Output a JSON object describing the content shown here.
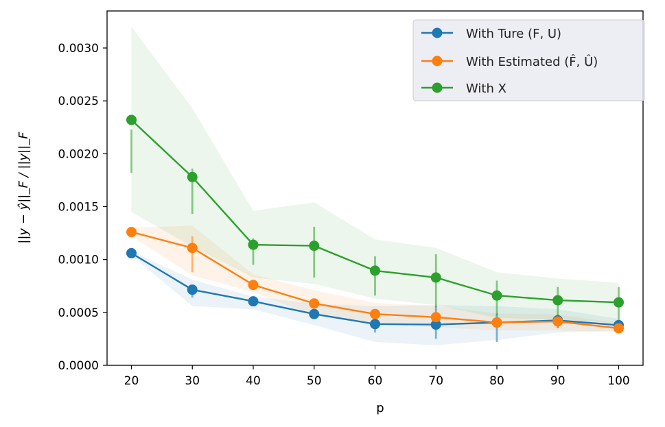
{
  "chart_data": {
    "type": "line",
    "title": "",
    "xlabel": "p",
    "ylabel": "||y − ŷ||_F / ||y||_F",
    "x": [
      20,
      30,
      40,
      50,
      60,
      70,
      80,
      90,
      100
    ],
    "xticks": [
      "20",
      "30",
      "40",
      "50",
      "60",
      "70",
      "80",
      "90",
      "100"
    ],
    "xlim": [
      16,
      104
    ],
    "ylim": [
      0,
      0.00335
    ],
    "yticks": [
      "0.0000",
      "0.0005",
      "0.0010",
      "0.0015",
      "0.0020",
      "0.0025",
      "0.0030"
    ],
    "ytick_values": [
      0,
      0.0005,
      0.001,
      0.0015,
      0.002,
      0.0025,
      0.003
    ],
    "grid": false,
    "legend_position": "top-right",
    "series": [
      {
        "name": "With Ture (F, U)",
        "color": "#1f77b4",
        "values": [
          0.00106,
          0.000715,
          0.000605,
          0.000485,
          0.00039,
          0.000385,
          0.000405,
          0.000425,
          0.00038
        ],
        "err_low": [
          0.00102,
          0.00064,
          0.00058,
          0.00045,
          0.00031,
          0.00025,
          0.00022,
          0.00035,
          0.00034
        ],
        "err_high": [
          0.0011,
          0.00075,
          0.00063,
          0.00052,
          0.00043,
          0.00056,
          0.00049,
          0.00048,
          0.00042
        ],
        "band_low": [
          0.00104,
          0.00056,
          0.00053,
          0.00038,
          0.00022,
          0.00019,
          0.00024,
          0.00031,
          0.00033
        ],
        "band_high": [
          0.00108,
          0.00081,
          0.00065,
          0.00058,
          0.00056,
          0.00057,
          0.00056,
          0.00053,
          0.00044
        ]
      },
      {
        "name": "With Estimated (F̂, Û)",
        "color": "#ff7f0e",
        "values": [
          0.00126,
          0.00111,
          0.00076,
          0.000585,
          0.000485,
          0.000455,
          0.000405,
          0.000415,
          0.00035
        ],
        "err_low": [
          0.00122,
          0.00088,
          0.00072,
          0.00055,
          0.00045,
          0.00042,
          0.00037,
          0.00035,
          0.00031
        ],
        "err_high": [
          0.0013,
          0.00122,
          0.0008,
          0.00062,
          0.00052,
          0.00049,
          0.00044,
          0.00048,
          0.00039
        ],
        "band_low": [
          0.00122,
          0.00085,
          0.00069,
          0.00047,
          0.00039,
          0.00036,
          0.00033,
          0.00033,
          0.00031
        ],
        "band_high": [
          0.0013,
          0.00132,
          0.00086,
          0.00071,
          0.00059,
          0.00056,
          0.00049,
          0.00048,
          0.0004
        ]
      },
      {
        "name": "With X",
        "color": "#2ca02c",
        "values": [
          0.00232,
          0.00178,
          0.00114,
          0.00113,
          0.000895,
          0.00083,
          0.00066,
          0.000615,
          0.000595
        ],
        "err_low": [
          0.00182,
          0.00143,
          0.00095,
          0.00083,
          0.00066,
          0.00055,
          0.00047,
          0.00042,
          0.00038
        ],
        "err_high": [
          0.00223,
          0.00186,
          0.0012,
          0.00131,
          0.00103,
          0.00105,
          0.0008,
          0.00074,
          0.00074
        ],
        "band_low": [
          0.00145,
          0.00112,
          0.00083,
          0.00077,
          0.00063,
          0.00057,
          0.00045,
          0.00043,
          0.0004
        ],
        "band_high": [
          0.0032,
          0.00243,
          0.00146,
          0.00154,
          0.00119,
          0.00111,
          0.00088,
          0.00082,
          0.00078
        ]
      }
    ]
  }
}
